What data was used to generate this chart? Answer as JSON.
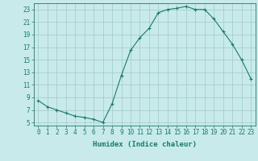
{
  "x": [
    0,
    1,
    2,
    3,
    4,
    5,
    6,
    7,
    8,
    9,
    10,
    11,
    12,
    13,
    14,
    15,
    16,
    17,
    18,
    19,
    20,
    21,
    22,
    23
  ],
  "y": [
    8.5,
    7.5,
    7.0,
    6.5,
    6.0,
    5.8,
    5.5,
    5.0,
    8.0,
    12.5,
    16.5,
    18.5,
    20.0,
    22.5,
    23.0,
    23.2,
    23.5,
    23.0,
    23.0,
    21.5,
    19.5,
    17.5,
    15.0,
    12.0
  ],
  "line_color": "#1a7a6e",
  "marker": "+",
  "marker_size": 3.5,
  "bg_color": "#c8eaea",
  "grid_color": "#a0c8c8",
  "xlabel": "Humidex (Indice chaleur)",
  "xlim": [
    -0.5,
    23.5
  ],
  "ylim": [
    4.5,
    24.0
  ],
  "xticks": [
    0,
    1,
    2,
    3,
    4,
    5,
    6,
    7,
    8,
    9,
    10,
    11,
    12,
    13,
    14,
    15,
    16,
    17,
    18,
    19,
    20,
    21,
    22,
    23
  ],
  "yticks": [
    5,
    7,
    9,
    11,
    13,
    15,
    17,
    19,
    21,
    23
  ],
  "label_fontsize": 6.5,
  "tick_fontsize": 5.5
}
